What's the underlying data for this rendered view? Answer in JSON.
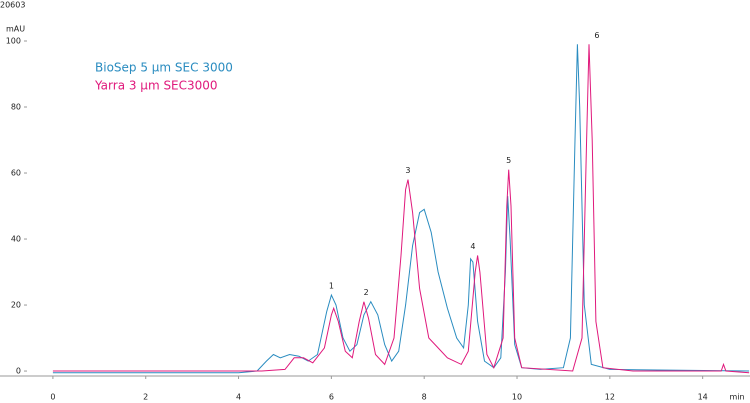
{
  "chart_data": {
    "type": "line",
    "id_text": "20603",
    "y_label": "mAU",
    "x_label": "min",
    "xlim": [
      -1.14,
      15.02
    ],
    "ylim": [
      -1.5,
      109
    ],
    "xticks": [
      0,
      2,
      4,
      6,
      8,
      10,
      12,
      14
    ],
    "yticks": [
      0,
      20,
      40,
      60,
      80,
      100
    ],
    "series": [
      {
        "name": "BioSep 5 µm SEC 3000",
        "color": "#2a8cc0",
        "x": [
          0,
          4.0,
          4.4,
          4.6,
          4.75,
          4.9,
          5.1,
          5.3,
          5.5,
          5.7,
          5.9,
          6.0,
          6.1,
          6.25,
          6.4,
          6.55,
          6.7,
          6.85,
          7.0,
          7.15,
          7.3,
          7.45,
          7.6,
          7.75,
          7.9,
          8.0,
          8.15,
          8.3,
          8.5,
          8.7,
          8.85,
          8.95,
          9.0,
          9.05,
          9.15,
          9.3,
          9.5,
          9.65,
          9.75,
          9.8,
          9.85,
          9.95,
          10.1,
          10.5,
          11.0,
          11.15,
          11.25,
          11.3,
          11.35,
          11.45,
          11.6,
          12.0,
          15.0
        ],
        "values": [
          -0.5,
          -0.5,
          0,
          3,
          5,
          4,
          5,
          4.5,
          3,
          5,
          18,
          23,
          20,
          10,
          6,
          8,
          17,
          21,
          17,
          8,
          3,
          6,
          20,
          38,
          48,
          49,
          42,
          30,
          19,
          10,
          7,
          20,
          34,
          33,
          15,
          3,
          1,
          4,
          30,
          53,
          40,
          8,
          1,
          0.5,
          1,
          10,
          70,
          99,
          80,
          20,
          2,
          0.5,
          0
        ]
      },
      {
        "name": "Yarra 3 µm SEC3000",
        "color": "#e0197c",
        "x": [
          0,
          4.5,
          5.0,
          5.2,
          5.4,
          5.6,
          5.85,
          6.0,
          6.05,
          6.15,
          6.3,
          6.45,
          6.6,
          6.7,
          6.8,
          6.95,
          7.15,
          7.35,
          7.5,
          7.6,
          7.65,
          7.75,
          7.9,
          8.1,
          8.3,
          8.5,
          8.8,
          8.95,
          9.1,
          9.15,
          9.2,
          9.35,
          9.5,
          9.7,
          9.78,
          9.82,
          9.87,
          9.95,
          10.1,
          11.2,
          11.4,
          11.5,
          11.55,
          11.62,
          11.7,
          11.85,
          12.5,
          14.4,
          14.45,
          14.5,
          15.0
        ],
        "values": [
          0,
          0,
          0.5,
          4,
          4,
          2.5,
          7,
          17,
          19,
          15,
          6,
          4,
          15,
          21,
          16,
          5,
          2,
          10,
          35,
          55,
          58,
          48,
          25,
          10,
          7,
          4,
          2,
          6,
          30,
          35,
          30,
          5,
          1,
          10,
          50,
          61,
          50,
          10,
          1,
          0,
          10,
          70,
          99,
          70,
          15,
          1,
          0,
          0,
          2,
          0,
          -0.5
        ]
      }
    ],
    "peak_labels": [
      {
        "label": "1",
        "x": 6.0,
        "y": 23
      },
      {
        "label": "2",
        "x": 6.75,
        "y": 21
      },
      {
        "label": "3",
        "x": 7.65,
        "y": 58
      },
      {
        "label": "4",
        "x": 9.05,
        "y": 35
      },
      {
        "label": "5",
        "x": 9.82,
        "y": 61
      },
      {
        "label": "6",
        "x": 11.55,
        "y": 99
      }
    ]
  }
}
